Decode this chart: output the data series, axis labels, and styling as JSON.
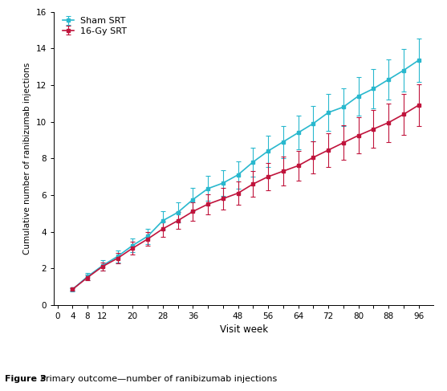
{
  "title_bold": "Figure 3",
  "title_rest": " Primary outcome—number of ranibizumab injections",
  "xlabel": "Visit week",
  "ylabel": "Cumulative number of ranibizumab injections",
  "xlim": [
    -1,
    100
  ],
  "ylim": [
    0,
    16
  ],
  "yticks": [
    0,
    2,
    4,
    6,
    8,
    10,
    12,
    14,
    16
  ],
  "xticks": [
    0,
    4,
    8,
    12,
    16,
    20,
    24,
    28,
    32,
    36,
    40,
    44,
    48,
    52,
    56,
    60,
    64,
    68,
    72,
    76,
    80,
    84,
    88,
    92,
    96
  ],
  "xtick_labels": [
    "0",
    "4",
    "8",
    "12",
    "",
    "20",
    "",
    "28",
    "",
    "36",
    "",
    "",
    "48",
    "",
    "56",
    "",
    "64",
    "",
    "72",
    "",
    "80",
    "",
    "88",
    "",
    "96"
  ],
  "sham_color": "#29B8CE",
  "gy_color": "#C0143C",
  "sham_label": "Sham SRT",
  "gy_label": "16-Gy SRT",
  "sham_x": [
    4,
    8,
    12,
    16,
    20,
    24,
    28,
    32,
    36,
    40,
    44,
    48,
    52,
    56,
    60,
    64,
    68,
    72,
    76,
    80,
    84,
    88,
    92,
    96
  ],
  "sham_y": [
    0.85,
    1.55,
    2.15,
    2.65,
    3.25,
    3.75,
    4.6,
    5.05,
    5.75,
    6.35,
    6.65,
    7.1,
    7.8,
    8.4,
    8.9,
    9.4,
    9.9,
    10.5,
    10.8,
    11.4,
    11.8,
    12.3,
    12.8,
    13.35
  ],
  "sham_err": [
    0.1,
    0.2,
    0.28,
    0.32,
    0.38,
    0.42,
    0.5,
    0.55,
    0.62,
    0.68,
    0.72,
    0.75,
    0.8,
    0.85,
    0.88,
    0.92,
    0.95,
    1.0,
    1.02,
    1.05,
    1.08,
    1.1,
    1.15,
    1.2
  ],
  "gy_x": [
    4,
    8,
    12,
    16,
    20,
    24,
    28,
    32,
    36,
    40,
    44,
    48,
    52,
    56,
    60,
    64,
    68,
    72,
    76,
    80,
    84,
    88,
    92,
    96
  ],
  "gy_y": [
    0.85,
    1.5,
    2.1,
    2.55,
    3.1,
    3.6,
    4.15,
    4.6,
    5.1,
    5.5,
    5.8,
    6.1,
    6.6,
    7.0,
    7.3,
    7.6,
    8.05,
    8.45,
    8.85,
    9.25,
    9.6,
    9.95,
    10.4,
    10.9
  ],
  "gy_err": [
    0.08,
    0.15,
    0.22,
    0.28,
    0.35,
    0.38,
    0.42,
    0.46,
    0.52,
    0.56,
    0.6,
    0.65,
    0.7,
    0.74,
    0.78,
    0.82,
    0.86,
    0.9,
    0.94,
    0.98,
    1.02,
    1.06,
    1.1,
    1.15
  ],
  "background_color": "#FFFFFF",
  "marker_size": 3.5,
  "linewidth": 1.2,
  "capsize": 2.0,
  "elinewidth": 0.8
}
